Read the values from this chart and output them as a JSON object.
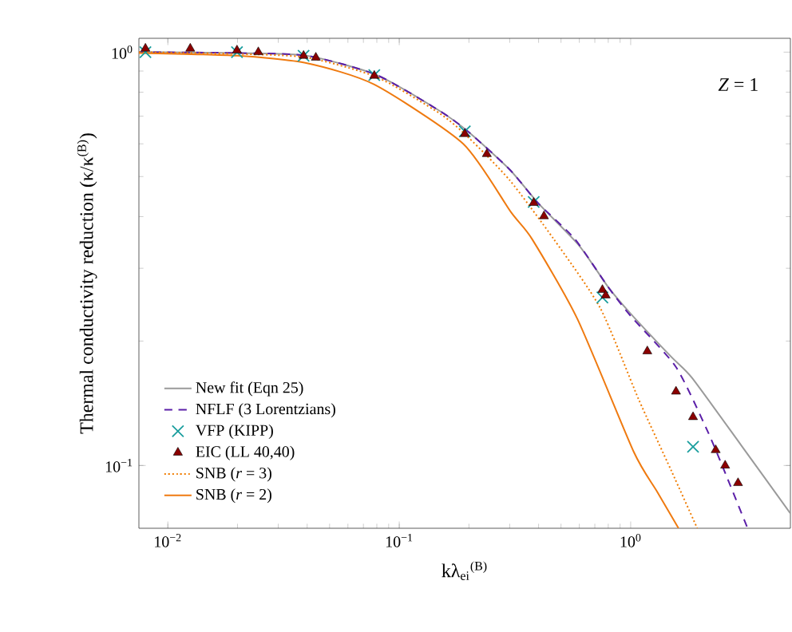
{
  "chart_data": {
    "type": "line",
    "xlabel": "kλ$_{ei}$$^{(B)}$",
    "ylabel": "Thermal conductivity reduction (κ/κ$^{(B)}$)",
    "annotations": [
      "*Z* = 1"
    ],
    "log": "xy",
    "xlim": [
      0.0075,
      4.9
    ],
    "ylim": [
      0.0705,
      1.08
    ],
    "xticks": [
      {
        "value": 0.01,
        "label": "10$^{−2}$"
      },
      {
        "value": 0.1,
        "label": "10$^{−1}$"
      },
      {
        "value": 1,
        "label": "10$^{0}$"
      }
    ],
    "yticks": [
      {
        "value": 0.1,
        "label": "10$^{−1}$"
      },
      {
        "value": 1,
        "label": "10$^{0}$"
      }
    ],
    "grid": false,
    "legend": "bottom left",
    "series": [
      {
        "name": "New fit (Eqn 25)",
        "color": "#9a9a9a",
        "line_style": "solid",
        "marker": "none",
        "x": [
          0.0075,
          0.02,
          0.04,
          0.08,
          0.15,
          0.2,
          0.3,
          0.4,
          0.6,
          0.8,
          1.0,
          1.5,
          1.84,
          3.0,
          4.9
        ],
        "values": [
          1.0,
          0.995,
          0.98,
          0.88,
          0.72,
          0.64,
          0.52,
          0.43,
          0.34,
          0.27,
          0.233,
          0.183,
          0.163,
          0.112,
          0.0766
        ]
      },
      {
        "name": "NFLF (3 Lorentzians)",
        "color": "#5b1fa8",
        "line_style": "dashed",
        "marker": "none",
        "x": [
          0.0075,
          0.02,
          0.04,
          0.08,
          0.15,
          0.2,
          0.3,
          0.4,
          0.574,
          0.8,
          1.0,
          1.57,
          2.15,
          2.6,
          3.2
        ],
        "values": [
          1.0,
          0.995,
          0.98,
          0.88,
          0.72,
          0.64,
          0.52,
          0.43,
          0.353,
          0.27,
          0.23,
          0.173,
          0.121,
          0.094,
          0.0705
        ]
      },
      {
        "name": "VFP (KIPP)",
        "type": "scatter",
        "color": "#1a9e9e",
        "marker": "cross",
        "x": [
          0.008,
          0.0199,
          0.0386,
          0.078,
          0.192,
          0.381,
          0.755,
          1.86
        ],
        "values": [
          1.0,
          1.0,
          0.98,
          0.88,
          0.643,
          0.434,
          0.255,
          0.111
        ]
      },
      {
        "name": "EIC (LL 40,40)",
        "type": "scatter",
        "color": "#8b0000",
        "marker": "triangle",
        "x": [
          0.008,
          0.0125,
          0.0199,
          0.0246,
          0.0386,
          0.0436,
          0.078,
          0.192,
          0.239,
          0.381,
          0.422,
          0.755,
          0.78,
          1.18,
          1.57,
          1.86,
          2.33,
          2.56,
          2.91
        ],
        "values": [
          1.02,
          1.02,
          1.01,
          1.0,
          0.98,
          0.97,
          0.877,
          0.634,
          0.567,
          0.432,
          0.401,
          0.266,
          0.258,
          0.189,
          0.151,
          0.131,
          0.109,
          0.1,
          0.0907
        ]
      },
      {
        "name": "SNB (*r* = 3)",
        "color": "#f07c00",
        "line_style": "dotted",
        "marker": "none",
        "x": [
          0.0075,
          0.02,
          0.04,
          0.08,
          0.15,
          0.2,
          0.3,
          0.465,
          0.74,
          1.08,
          1.5,
          1.94
        ],
        "values": [
          1.0,
          0.99,
          0.97,
          0.87,
          0.71,
          0.62,
          0.49,
          0.353,
          0.24,
          0.145,
          0.097,
          0.0705
        ]
      },
      {
        "name": "SNB (*r* = 2)",
        "color": "#ef7a10",
        "line_style": "solid",
        "marker": "none",
        "x": [
          0.0075,
          0.02,
          0.04,
          0.078,
          0.189,
          0.304,
          0.375,
          0.589,
          1.03,
          1.3,
          1.61
        ],
        "values": [
          0.995,
          0.98,
          0.94,
          0.835,
          0.6,
          0.41,
          0.353,
          0.226,
          0.108,
          0.0865,
          0.0705
        ]
      }
    ]
  }
}
